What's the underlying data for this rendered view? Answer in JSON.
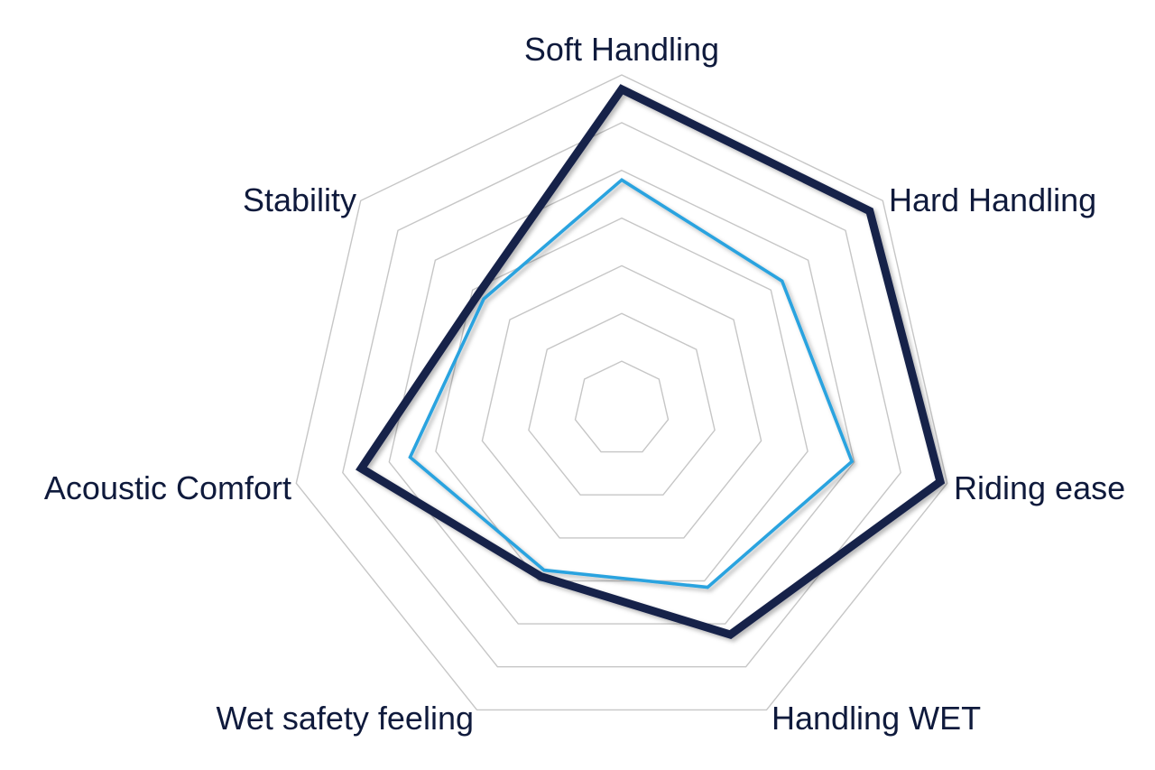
{
  "chart_data": {
    "type": "radar",
    "categories": [
      "Soft Handling",
      "Hard Handling",
      "Riding ease",
      "Handling WET",
      "Wet safety feeling",
      "Acoustic Comfort",
      "Stability"
    ],
    "range": [
      0,
      7
    ],
    "rings": 7,
    "grid": true,
    "legend": "none",
    "series": [
      {
        "values": [
          6.7,
          6.65,
          6.85,
          5.25,
          3.9,
          5.6,
          3.85
        ],
        "color": "#15204a"
      },
      {
        "values": [
          4.8,
          4.3,
          4.95,
          4.15,
          3.75,
          4.55,
          3.7
        ],
        "color": "#2aa3df"
      }
    ]
  }
}
